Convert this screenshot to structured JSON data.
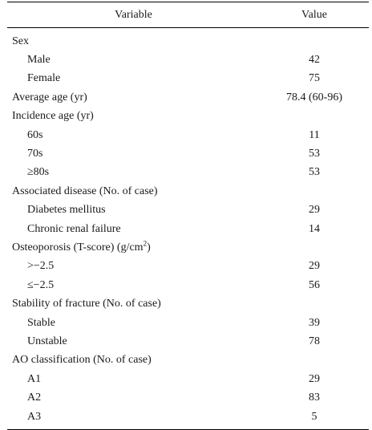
{
  "header": {
    "variable": "Variable",
    "value": "Value"
  },
  "rows": [
    {
      "label": "Sex",
      "value": ""
    },
    {
      "label": "Male",
      "value": "42"
    },
    {
      "label": "Female",
      "value": "75"
    },
    {
      "label": "Average age (yr)",
      "value": "78.4 (60-96)"
    },
    {
      "label": "Incidence age (yr)",
      "value": ""
    },
    {
      "label": "60s",
      "value": "11"
    },
    {
      "label": "70s",
      "value": "53"
    },
    {
      "label": "≥80s",
      "value": "53"
    },
    {
      "label": "Associated disease (No. of case)",
      "value": ""
    },
    {
      "label": "Diabetes mellitus",
      "value": "29"
    },
    {
      "label": "Chronic renal failure",
      "value": "14"
    },
    {
      "label": "Osteoporosis (T-score) (g/cm",
      "sup": "2",
      "label_end": ")",
      "value": ""
    },
    {
      "label": ">−2.5",
      "value": "29"
    },
    {
      "label": "≤−2.5",
      "value": "56"
    },
    {
      "label": "Stability of fracture (No. of case)",
      "value": ""
    },
    {
      "label": "Stable",
      "value": "39"
    },
    {
      "label": "Unstable",
      "value": "78"
    },
    {
      "label": "AO classification (No. of case)",
      "value": ""
    },
    {
      "label": "A1",
      "value": "29"
    },
    {
      "label": "A2",
      "value": "83"
    },
    {
      "label": "A3",
      "value": "5"
    }
  ]
}
